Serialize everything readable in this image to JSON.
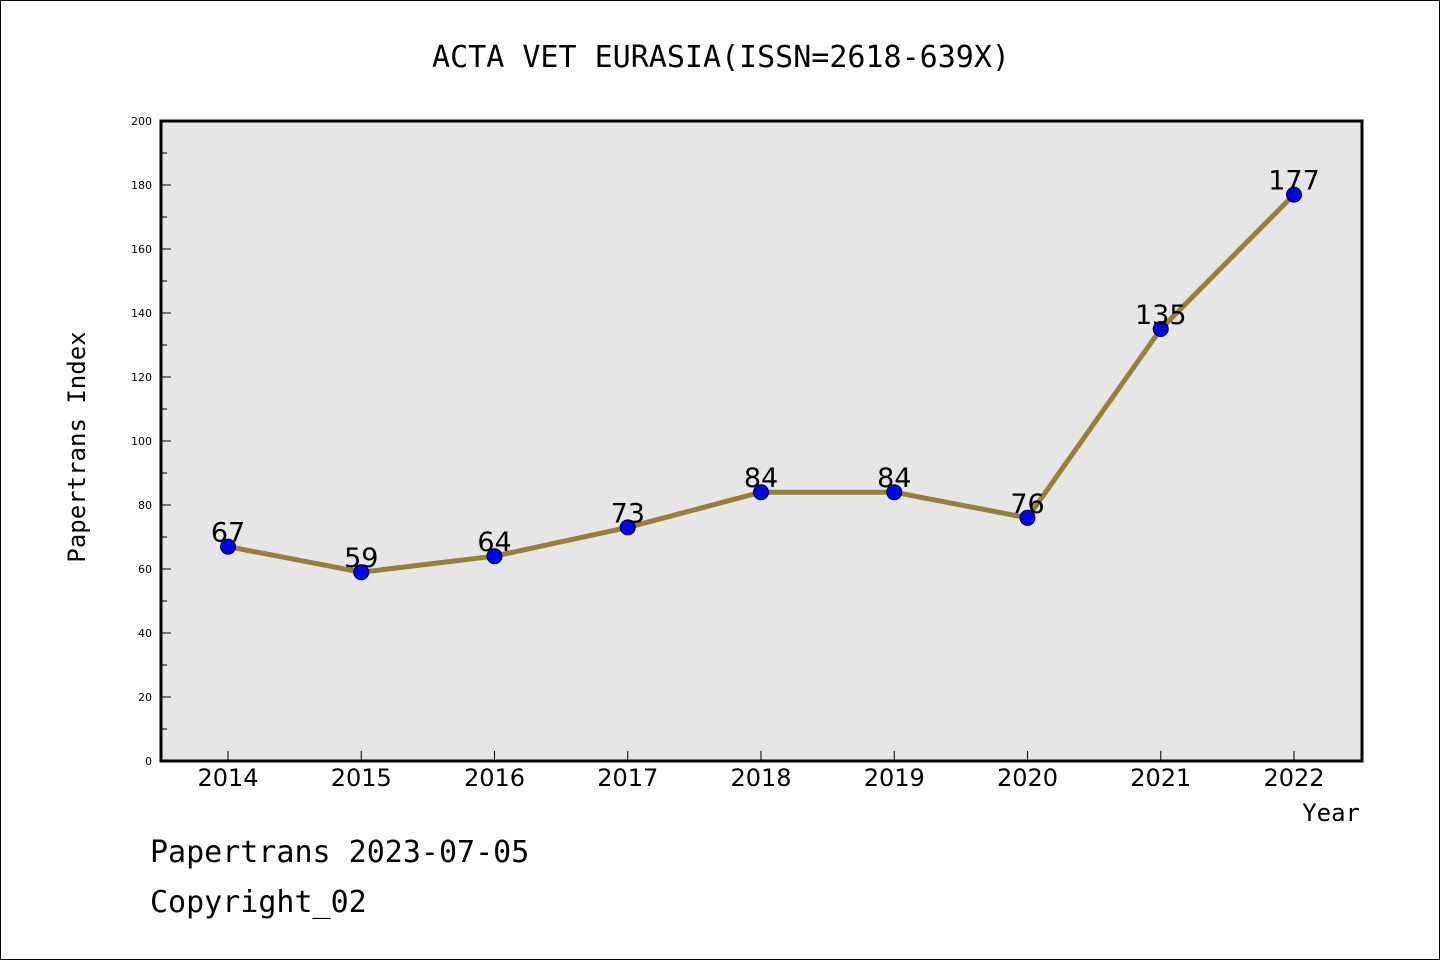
{
  "chart_data": {
    "type": "line",
    "title": "ACTA VET EURASIA(ISSN=2618-639X)",
    "xlabel": "Year",
    "ylabel": "Papertrans Index",
    "categories": [
      "2014",
      "2015",
      "2016",
      "2017",
      "2018",
      "2019",
      "2020",
      "2021",
      "2022"
    ],
    "series": [
      {
        "name": "Papertrans Index",
        "values": [
          67,
          59,
          64,
          73,
          84,
          84,
          76,
          135,
          177
        ]
      }
    ],
    "data_labels": [
      "67",
      "59",
      "64",
      "73",
      "84",
      "84",
      "76",
      "135",
      "177"
    ],
    "ylim": [
      0,
      200
    ],
    "yticks": [
      0,
      20,
      40,
      60,
      80,
      100,
      120,
      140,
      160,
      180,
      200
    ],
    "ytick_labels": [
      "0",
      "20",
      "40",
      "60",
      "80",
      "100",
      "120",
      "140",
      "160",
      "180",
      "200"
    ],
    "minor_ytick_step": 10,
    "grid": false,
    "colors": {
      "line": "#948136",
      "marker": "#0000ff",
      "plot_background": "#e6e6e6"
    }
  },
  "footer": {
    "source": "Papertrans 2023-07-05",
    "copyright": "Copyright_02"
  }
}
